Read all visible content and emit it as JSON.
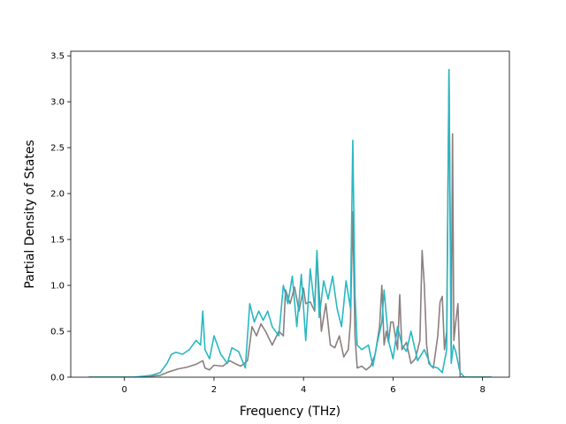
{
  "chart_data": {
    "type": "line",
    "xlabel": "Frequency (THz)",
    "ylabel": "Partial Density of States",
    "xlim": [
      -1.2,
      8.6
    ],
    "ylim": [
      0,
      3.55
    ],
    "xticks": [
      0,
      2,
      4,
      6,
      8
    ],
    "xtick_labels": [
      "0",
      "2",
      "4",
      "6",
      "8"
    ],
    "yticks": [
      0.0,
      0.5,
      1.0,
      1.5,
      2.0,
      2.5,
      3.0,
      3.5
    ],
    "ytick_labels": [
      "0.0",
      "0.5",
      "1.0",
      "1.5",
      "2.0",
      "2.5",
      "3.0",
      "3.5"
    ],
    "grid": false,
    "legend": "none",
    "series": [
      {
        "color": "#8c7f80",
        "x": [
          -0.8,
          0.3,
          0.8,
          1.0,
          1.2,
          1.4,
          1.6,
          1.75,
          1.8,
          1.9,
          2.0,
          2.2,
          2.35,
          2.5,
          2.6,
          2.75,
          2.85,
          2.95,
          3.05,
          3.15,
          3.3,
          3.45,
          3.55,
          3.6,
          3.7,
          3.8,
          3.9,
          4.0,
          4.05,
          4.15,
          4.25,
          4.3,
          4.4,
          4.5,
          4.6,
          4.7,
          4.8,
          4.9,
          5.0,
          5.05,
          5.1,
          5.15,
          5.2,
          5.3,
          5.4,
          5.5,
          5.6,
          5.7,
          5.75,
          5.8,
          5.85,
          5.9,
          5.95,
          6.0,
          6.1,
          6.15,
          6.2,
          6.3,
          6.4,
          6.5,
          6.6,
          6.65,
          6.7,
          6.75,
          6.8,
          6.9,
          7.0,
          7.05,
          7.1,
          7.15,
          7.2,
          7.25,
          7.3,
          7.33,
          7.36,
          7.4,
          7.45,
          7.5,
          8.2
        ],
        "y": [
          0.0,
          0.0,
          0.02,
          0.06,
          0.09,
          0.11,
          0.14,
          0.18,
          0.1,
          0.08,
          0.13,
          0.12,
          0.18,
          0.14,
          0.12,
          0.18,
          0.55,
          0.45,
          0.58,
          0.5,
          0.35,
          0.5,
          0.45,
          0.95,
          0.8,
          0.98,
          0.72,
          0.97,
          0.8,
          0.82,
          0.72,
          1.35,
          0.5,
          0.8,
          0.35,
          0.32,
          0.45,
          0.22,
          0.3,
          0.6,
          1.8,
          0.45,
          0.1,
          0.12,
          0.08,
          0.12,
          0.25,
          0.55,
          1.0,
          0.35,
          0.5,
          0.38,
          0.6,
          0.6,
          0.3,
          0.9,
          0.3,
          0.38,
          0.15,
          0.2,
          0.4,
          1.38,
          1.0,
          0.35,
          0.15,
          0.1,
          0.45,
          0.82,
          0.88,
          0.3,
          0.5,
          3.35,
          0.3,
          2.65,
          0.4,
          0.6,
          0.8,
          0.0,
          0.0
        ]
      },
      {
        "color": "#2ab8c2",
        "x": [
          -0.8,
          0.2,
          0.6,
          0.8,
          0.95,
          1.05,
          1.15,
          1.3,
          1.45,
          1.6,
          1.7,
          1.75,
          1.8,
          1.9,
          2.0,
          2.15,
          2.3,
          2.4,
          2.55,
          2.7,
          2.8,
          2.9,
          3.0,
          3.1,
          3.2,
          3.3,
          3.45,
          3.55,
          3.65,
          3.75,
          3.85,
          3.95,
          4.05,
          4.15,
          4.25,
          4.3,
          4.35,
          4.45,
          4.55,
          4.65,
          4.75,
          4.85,
          4.95,
          5.05,
          5.1,
          5.15,
          5.2,
          5.3,
          5.45,
          5.55,
          5.65,
          5.75,
          5.8,
          5.9,
          6.0,
          6.1,
          6.2,
          6.3,
          6.4,
          6.55,
          6.7,
          6.85,
          7.0,
          7.1,
          7.2,
          7.25,
          7.3,
          7.35,
          7.4,
          7.5,
          7.6,
          8.2
        ],
        "y": [
          0.0,
          0.0,
          0.02,
          0.05,
          0.15,
          0.25,
          0.27,
          0.25,
          0.3,
          0.4,
          0.35,
          0.72,
          0.3,
          0.2,
          0.45,
          0.25,
          0.15,
          0.32,
          0.28,
          0.1,
          0.8,
          0.6,
          0.72,
          0.62,
          0.72,
          0.55,
          0.45,
          1.0,
          0.8,
          1.1,
          0.55,
          1.12,
          0.4,
          1.18,
          0.75,
          1.38,
          0.65,
          1.05,
          0.85,
          1.1,
          0.75,
          0.55,
          1.05,
          0.75,
          2.58,
          0.9,
          0.35,
          0.3,
          0.35,
          0.12,
          0.38,
          0.6,
          0.95,
          0.4,
          0.2,
          0.55,
          0.35,
          0.28,
          0.5,
          0.18,
          0.3,
          0.12,
          0.1,
          0.05,
          0.3,
          3.35,
          0.15,
          0.35,
          0.28,
          0.05,
          0.0,
          0.0
        ]
      }
    ]
  }
}
